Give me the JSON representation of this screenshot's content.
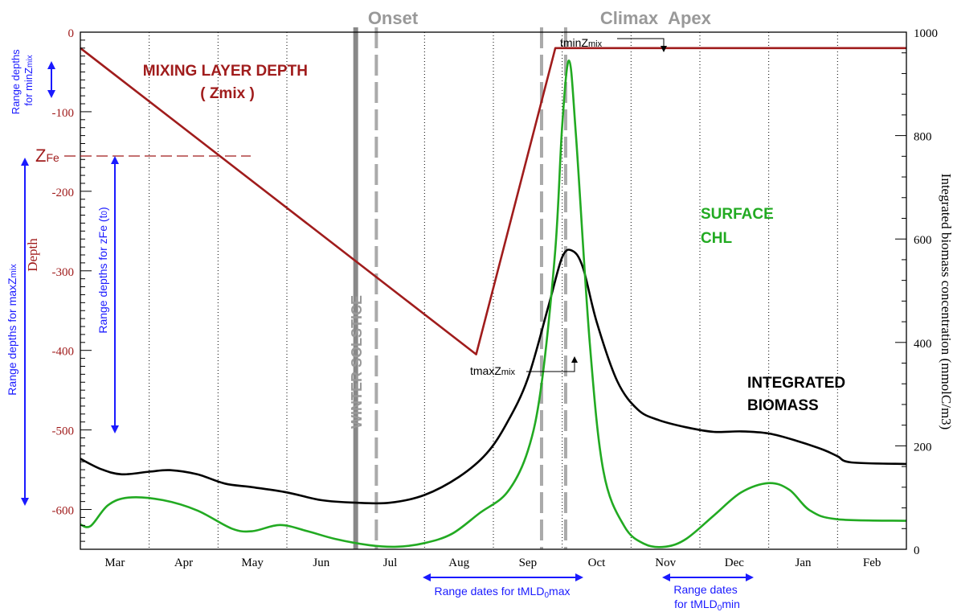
{
  "chart_data": {
    "type": "line",
    "x_months": [
      "Mar",
      "Apr",
      "May",
      "Jun",
      "Jul",
      "Aug",
      "Sep",
      "Oct",
      "Nov",
      "Dec",
      "Jan",
      "Feb"
    ],
    "left_axis": {
      "label": "Depth",
      "range": [
        -650,
        0
      ],
      "ticks": [
        0,
        -100,
        -200,
        -300,
        -400,
        -500,
        -600
      ]
    },
    "right_axis": {
      "label": "Integrated biomass concentration (mmolC/m3)",
      "range": [
        0,
        1000
      ],
      "ticks": [
        0,
        200,
        400,
        600,
        800,
        1000
      ]
    },
    "grid": "vertical dotted at month boundaries",
    "series": [
      {
        "name": "MIXING LAYER DEPTH\n( Zmix )",
        "axis": "left",
        "color": "#a01c1c",
        "points": [
          [
            0.0,
            -20
          ],
          [
            5.75,
            -405
          ],
          [
            6.9,
            -20
          ],
          [
            12.0,
            -20
          ]
        ]
      },
      {
        "name": "INTEGRATED BIOMASS",
        "axis": "right",
        "color": "#000000",
        "points": [
          [
            0.0,
            175
          ],
          [
            0.3,
            155
          ],
          [
            0.6,
            145
          ],
          [
            1.0,
            150
          ],
          [
            1.3,
            153
          ],
          [
            1.7,
            145
          ],
          [
            2.1,
            127
          ],
          [
            2.5,
            120
          ],
          [
            3.0,
            110
          ],
          [
            3.5,
            95
          ],
          [
            4.0,
            90
          ],
          [
            4.5,
            90
          ],
          [
            5.0,
            105
          ],
          [
            5.5,
            140
          ],
          [
            5.9,
            185
          ],
          [
            6.2,
            245
          ],
          [
            6.5,
            330
          ],
          [
            6.8,
            470
          ],
          [
            7.0,
            565
          ],
          [
            7.15,
            577
          ],
          [
            7.3,
            545
          ],
          [
            7.5,
            440
          ],
          [
            7.8,
            325
          ],
          [
            8.1,
            270
          ],
          [
            8.4,
            250
          ],
          [
            8.8,
            236
          ],
          [
            9.2,
            227
          ],
          [
            9.6,
            228
          ],
          [
            10.0,
            224
          ],
          [
            10.4,
            210
          ],
          [
            10.8,
            192
          ],
          [
            11.0,
            180
          ],
          [
            11.2,
            168
          ],
          [
            12.0,
            165
          ]
        ]
      },
      {
        "name": "SURFACE CHL",
        "axis": "right",
        "color": "#22aa22",
        "points": [
          [
            0.0,
            48
          ],
          [
            0.15,
            45
          ],
          [
            0.4,
            85
          ],
          [
            0.7,
            100
          ],
          [
            1.2,
            95
          ],
          [
            1.7,
            75
          ],
          [
            2.2,
            40
          ],
          [
            2.5,
            35
          ],
          [
            2.9,
            47
          ],
          [
            3.3,
            35
          ],
          [
            3.7,
            20
          ],
          [
            4.2,
            8
          ],
          [
            4.6,
            5
          ],
          [
            5.0,
            12
          ],
          [
            5.4,
            30
          ],
          [
            5.8,
            70
          ],
          [
            6.2,
            110
          ],
          [
            6.5,
            190
          ],
          [
            6.7,
            320
          ],
          [
            6.9,
            580
          ],
          [
            7.0,
            820
          ],
          [
            7.1,
            945
          ],
          [
            7.2,
            800
          ],
          [
            7.4,
            400
          ],
          [
            7.6,
            150
          ],
          [
            7.9,
            45
          ],
          [
            8.2,
            10
          ],
          [
            8.5,
            5
          ],
          [
            8.8,
            20
          ],
          [
            9.2,
            65
          ],
          [
            9.6,
            110
          ],
          [
            10.0,
            128
          ],
          [
            10.3,
            115
          ],
          [
            10.6,
            75
          ],
          [
            11.0,
            58
          ],
          [
            12.0,
            55
          ]
        ]
      }
    ],
    "vertical_markers": [
      {
        "label": "Onset",
        "x": 4.0,
        "style": "solid"
      },
      {
        "label": "",
        "x": 4.3,
        "style": "dashed"
      },
      {
        "label": "Climax",
        "x": 6.7,
        "style": "dashed"
      },
      {
        "label": "Apex",
        "x": 7.05,
        "style": "dashed"
      }
    ],
    "annotations": {
      "winter_solstice": "WINTER SOLSTICE",
      "zfe": "Z",
      "zfe_sub": "Fe",
      "zfe_depth": -155,
      "tmaxzmix": "tmaxZ",
      "tmaxzmix_sub": "mix",
      "tminzmix": "tminZ",
      "tminzmix_sub": "mix",
      "range_minzmix_1": "Range depths",
      "range_minzmix_2": "for minZ",
      "range_minzmix_2_sub": "mix",
      "range_maxzmix": "Range depths for maxZ",
      "range_maxzmix_sub": "mix",
      "range_zfe": "Range depths for zFe (t",
      "range_zfe_sub": "0",
      "range_zfe_end": ")",
      "range_tmldmax": "Range dates for tMLD",
      "range_tmldmax_sub": "0",
      "range_tmldmax_end": "max",
      "range_tmldmin_1": "Range dates",
      "range_tmldmin_2": "for tMLD",
      "range_tmldmin_2_sub": "0",
      "range_tmldmin_2_end": "min"
    },
    "colors": {
      "depth": "#a01c1c",
      "biomass": "#000000",
      "chl": "#22aa22",
      "range": "#1a1aff",
      "marker": "#999999"
    }
  }
}
